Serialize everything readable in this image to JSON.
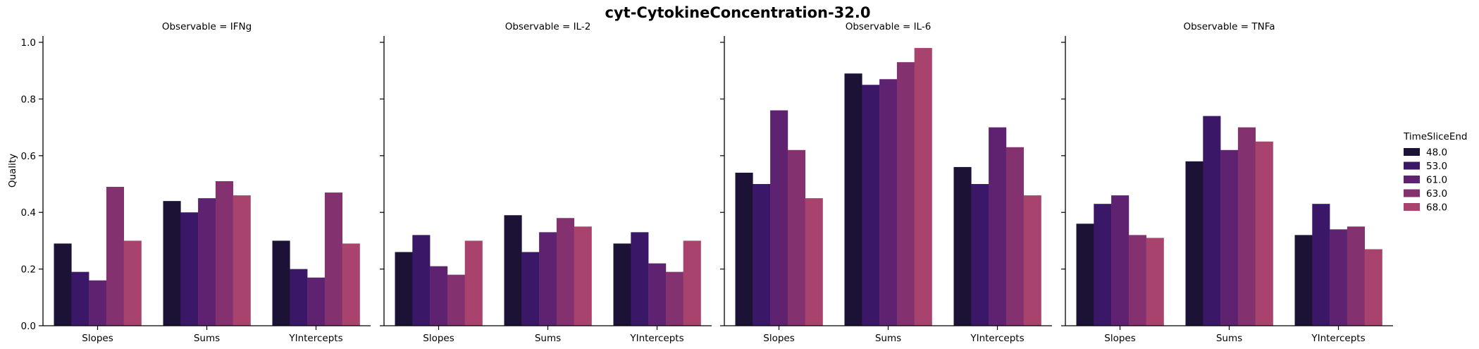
{
  "chart_data": {
    "type": "bar",
    "title": "cyt-CytokineConcentration-32.0",
    "ylabel": "Quality",
    "xlabel": "",
    "ylim": [
      0,
      1.02
    ],
    "yticks": [
      "0.0",
      "0.2",
      "0.4",
      "0.6",
      "0.8",
      "1.0"
    ],
    "categories": [
      "Slopes",
      "Sums",
      "YIntercepts"
    ],
    "legend": {
      "title": "TimeSliceEnd",
      "placement": "right",
      "entries": [
        "48.0",
        "53.0",
        "61.0",
        "63.0",
        "68.0"
      ]
    },
    "colors": [
      "#1b1236",
      "#3b1867",
      "#5f2270",
      "#83316f",
      "#a8436e"
    ],
    "panels": [
      {
        "title": "Observable = IFNg",
        "series": [
          {
            "name": "48.0",
            "values": [
              0.29,
              0.44,
              0.3
            ]
          },
          {
            "name": "53.0",
            "values": [
              0.19,
              0.4,
              0.2
            ]
          },
          {
            "name": "61.0",
            "values": [
              0.16,
              0.45,
              0.17
            ]
          },
          {
            "name": "63.0",
            "values": [
              0.49,
              0.51,
              0.47
            ]
          },
          {
            "name": "68.0",
            "values": [
              0.3,
              0.46,
              0.29
            ]
          }
        ]
      },
      {
        "title": "Observable = IL-2",
        "series": [
          {
            "name": "48.0",
            "values": [
              0.26,
              0.39,
              0.29
            ]
          },
          {
            "name": "53.0",
            "values": [
              0.32,
              0.26,
              0.33
            ]
          },
          {
            "name": "61.0",
            "values": [
              0.21,
              0.33,
              0.22
            ]
          },
          {
            "name": "63.0",
            "values": [
              0.18,
              0.38,
              0.19
            ]
          },
          {
            "name": "68.0",
            "values": [
              0.3,
              0.35,
              0.3
            ]
          }
        ]
      },
      {
        "title": "Observable = IL-6",
        "series": [
          {
            "name": "48.0",
            "values": [
              0.54,
              0.89,
              0.56
            ]
          },
          {
            "name": "53.0",
            "values": [
              0.5,
              0.85,
              0.5
            ]
          },
          {
            "name": "61.0",
            "values": [
              0.76,
              0.87,
              0.7
            ]
          },
          {
            "name": "63.0",
            "values": [
              0.62,
              0.93,
              0.63
            ]
          },
          {
            "name": "68.0",
            "values": [
              0.45,
              0.98,
              0.46
            ]
          }
        ]
      },
      {
        "title": "Observable = TNFa",
        "series": [
          {
            "name": "48.0",
            "values": [
              0.36,
              0.58,
              0.32
            ]
          },
          {
            "name": "53.0",
            "values": [
              0.43,
              0.74,
              0.43
            ]
          },
          {
            "name": "61.0",
            "values": [
              0.46,
              0.62,
              0.34
            ]
          },
          {
            "name": "63.0",
            "values": [
              0.32,
              0.7,
              0.35
            ]
          },
          {
            "name": "68.0",
            "values": [
              0.31,
              0.65,
              0.27
            ]
          }
        ]
      }
    ]
  }
}
